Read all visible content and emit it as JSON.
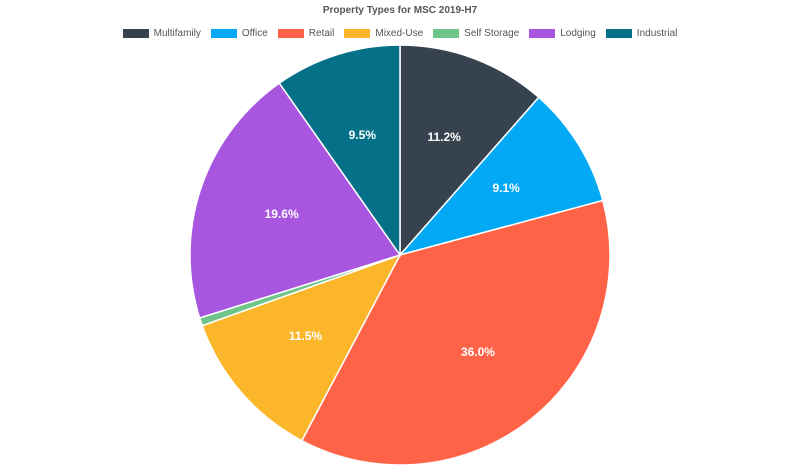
{
  "chart_data": {
    "type": "pie",
    "title": "Property Types for MSC 2019-H7",
    "legend_position": "top",
    "slices": [
      {
        "name": "Multifamily",
        "value": 11.2,
        "label": "11.2%",
        "color": "#37424f"
      },
      {
        "name": "Office",
        "value": 9.1,
        "label": "9.1%",
        "color": "#03a9f4"
      },
      {
        "name": "Retail",
        "value": 36.0,
        "label": "36.0%",
        "color": "#ff6347"
      },
      {
        "name": "Mixed-Use",
        "value": 11.5,
        "label": "11.5%",
        "color": "#fbb629"
      },
      {
        "name": "Self Storage",
        "value": 0.6,
        "label": "",
        "color": "#6fc48a"
      },
      {
        "name": "Lodging",
        "value": 19.6,
        "label": "19.6%",
        "color": "#a855e0"
      },
      {
        "name": "Industrial",
        "value": 9.5,
        "label": "9.5%",
        "color": "#047188"
      }
    ]
  }
}
